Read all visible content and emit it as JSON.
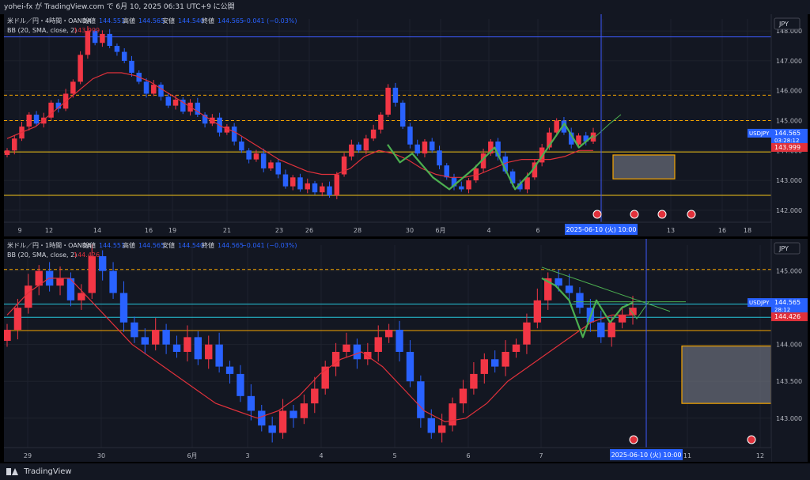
{
  "header": {
    "publish_text": "yohei-fx が TradingView.com で 6月 10, 2025 06:31 UTC+9 に公開"
  },
  "footer": {
    "brand": "TradingView"
  },
  "colors": {
    "up": "#f23645",
    "down": "#2962ff",
    "bb": "#e0313b",
    "green": "#4caf50",
    "orange": "#f7a600",
    "yellow": "#f5c518",
    "cyan": "#26c6da",
    "blue_line": "#3d5afe"
  },
  "chart_data": [
    {
      "type": "candlestick",
      "symbol": "USDJPY",
      "legend_main": "米ドル／円・4時間・OANDA",
      "legend_ohlc": [
        {
          "label": "始値",
          "value": "144.551"
        },
        {
          "label": "高値",
          "value": "144.565"
        },
        {
          "label": "安値",
          "value": "144.540"
        },
        {
          "label": "終値",
          "value": "144.565"
        },
        {
          "label": "",
          "value": "−0.041 (−0.03%)"
        }
      ],
      "indicator_label": "BB (20, SMA, close, 2)",
      "indicator_value": "143.999",
      "currency": "JPY",
      "ylim": [
        141.6,
        148.4
      ],
      "y_ticks": [
        "148.000",
        "147.000",
        "146.000",
        "145.000",
        "144.000",
        "143.000",
        "142.000"
      ],
      "x_ticks": [
        "9",
        "12",
        "14",
        "16",
        "19",
        "21",
        "23",
        "26",
        "28",
        "30",
        "6月",
        "4",
        "6",
        "9",
        "13",
        "16",
        "18"
      ],
      "price_label": "144.565",
      "countdown": "03:28:12",
      "bb_label": "143.999",
      "crosshair_label": "2025-06-10 (火)   10:00",
      "levels": [
        {
          "price": 147.8,
          "style": "solid",
          "color": "#3d5afe"
        },
        {
          "price": 145.85,
          "style": "dashed",
          "color": "#f7a600"
        },
        {
          "price": 145.0,
          "style": "dashed",
          "color": "#f7a600"
        },
        {
          "price": 143.95,
          "style": "solid",
          "color": "#f5c518"
        },
        {
          "price": 142.5,
          "style": "solid",
          "color": "#f5c518"
        }
      ],
      "closes": [
        144.0,
        144.4,
        144.8,
        145.2,
        144.9,
        145.1,
        145.6,
        145.4,
        145.9,
        146.3,
        147.2,
        148.0,
        147.6,
        147.9,
        147.5,
        147.3,
        147.0,
        146.6,
        146.3,
        145.9,
        146.2,
        145.8,
        145.5,
        145.7,
        145.3,
        145.6,
        145.2,
        144.9,
        145.1,
        144.6,
        144.8,
        144.3,
        144.0,
        143.7,
        143.9,
        143.4,
        143.6,
        143.2,
        142.8,
        143.1,
        142.7,
        142.9,
        142.6,
        142.8,
        142.5,
        143.2,
        143.8,
        144.2,
        144.0,
        144.4,
        144.7,
        145.2,
        146.1,
        145.6,
        144.8,
        144.2,
        143.9,
        144.3,
        144.0,
        143.5,
        143.1,
        142.8,
        142.7,
        143.0,
        143.4,
        143.9,
        144.3,
        143.8,
        143.3,
        142.9,
        142.7,
        143.1,
        143.6,
        144.1,
        144.6,
        145.0,
        144.6,
        144.2,
        144.5,
        144.3,
        144.6
      ],
      "bb_mid": [
        144.4,
        144.6,
        144.8,
        145.2,
        145.6,
        146.0,
        146.4,
        146.6,
        146.6,
        146.5,
        146.3,
        146.0,
        145.7,
        145.4,
        145.1,
        144.8,
        144.6,
        144.3,
        144.0,
        143.7,
        143.5,
        143.3,
        143.2,
        143.2,
        143.4,
        143.8,
        144.0,
        143.9,
        143.7,
        143.4,
        143.2,
        143.1,
        143.1,
        143.2,
        143.4,
        143.6,
        143.7,
        143.7,
        143.7,
        143.8,
        144.0,
        144.0
      ],
      "green_path": [
        [
          144.2,
          0
        ],
        [
          143.6,
          0.06
        ],
        [
          143.9,
          0.12
        ],
        [
          143.1,
          0.22
        ],
        [
          142.7,
          0.3
        ],
        [
          143.4,
          0.42
        ],
        [
          144.1,
          0.52
        ],
        [
          142.7,
          0.62
        ],
        [
          143.3,
          0.7
        ],
        [
          144.9,
          0.86
        ],
        [
          144.1,
          0.93
        ],
        [
          144.5,
          1.0
        ]
      ],
      "projection": [
        [
          144.4,
          0
        ],
        [
          144.9,
          0.6
        ],
        [
          145.2,
          1.0
        ]
      ],
      "box": {
        "from": 143.85,
        "to": 143.05
      }
    },
    {
      "type": "candlestick",
      "symbol": "USDJPY",
      "legend_main": "米ドル／円・1時間・OANDA",
      "legend_ohlc": [
        {
          "label": "始値",
          "value": "144.551"
        },
        {
          "label": "高値",
          "value": "144.565"
        },
        {
          "label": "安値",
          "value": "144.540"
        },
        {
          "label": "終値",
          "value": "144.565"
        },
        {
          "label": "",
          "value": "−0.041 (−0.03%)"
        }
      ],
      "indicator_label": "BB (20, SMA, close, 2)",
      "indicator_value": "144.426",
      "currency": "JPY",
      "ylim": [
        142.6,
        145.35
      ],
      "y_ticks": [
        "145.000",
        "144.500",
        "144.000",
        "143.500",
        "143.000"
      ],
      "x_ticks": [
        "29",
        "30",
        "6月",
        "3",
        "4",
        "5",
        "6",
        "7",
        "11",
        "12"
      ],
      "price_label": "144.565",
      "countdown": "28:12",
      "bb_label": "144.426",
      "crosshair_label": "2025-06-10 (火)   10:00",
      "levels": [
        {
          "price": 145.02,
          "style": "dashed",
          "color": "#f7a600"
        },
        {
          "price": 144.55,
          "style": "solid",
          "color": "#26c6da"
        },
        {
          "price": 144.37,
          "style": "solid",
          "color": "#26c6da"
        },
        {
          "price": 144.19,
          "style": "solid",
          "color": "#f7a600"
        }
      ],
      "closes": [
        144.2,
        144.5,
        144.8,
        145.0,
        144.8,
        144.9,
        144.6,
        144.7,
        145.2,
        145.0,
        144.7,
        144.3,
        144.1,
        144.0,
        144.2,
        144.0,
        143.9,
        144.1,
        143.8,
        144.0,
        143.7,
        143.6,
        143.3,
        143.1,
        142.9,
        142.8,
        143.1,
        143.0,
        143.2,
        143.4,
        143.7,
        143.9,
        144.0,
        143.8,
        143.9,
        144.1,
        144.2,
        143.9,
        143.5,
        143.0,
        142.8,
        142.9,
        143.2,
        143.4,
        143.6,
        143.8,
        143.7,
        143.9,
        144.0,
        144.3,
        144.6,
        144.9,
        144.8,
        144.7,
        144.5,
        144.3,
        144.1,
        144.3,
        144.4,
        144.5
      ],
      "bb_mid": [
        144.4,
        144.7,
        144.9,
        144.9,
        144.6,
        144.3,
        144.0,
        143.8,
        143.6,
        143.4,
        143.2,
        143.1,
        143.0,
        143.1,
        143.3,
        143.6,
        143.8,
        143.9,
        143.7,
        143.4,
        143.1,
        142.95,
        143.0,
        143.2,
        143.5,
        143.7,
        143.9,
        144.1,
        144.3,
        144.4,
        144.4
      ],
      "green_path": [
        [
          144.9,
          0
        ],
        [
          144.8,
          0.15
        ],
        [
          144.6,
          0.3
        ],
        [
          144.1,
          0.45
        ],
        [
          144.6,
          0.6
        ],
        [
          144.3,
          0.75
        ],
        [
          144.5,
          0.88
        ],
        [
          144.57,
          1.0
        ]
      ],
      "projection": [
        [
          144.5,
          0
        ],
        [
          144.35,
          0.4
        ],
        [
          144.58,
          1.0
        ]
      ],
      "trend_line": [
        [
          145.05,
          0
        ],
        [
          144.45,
          1.0
        ]
      ],
      "box": {
        "from": 143.98,
        "to": 143.2
      }
    }
  ]
}
